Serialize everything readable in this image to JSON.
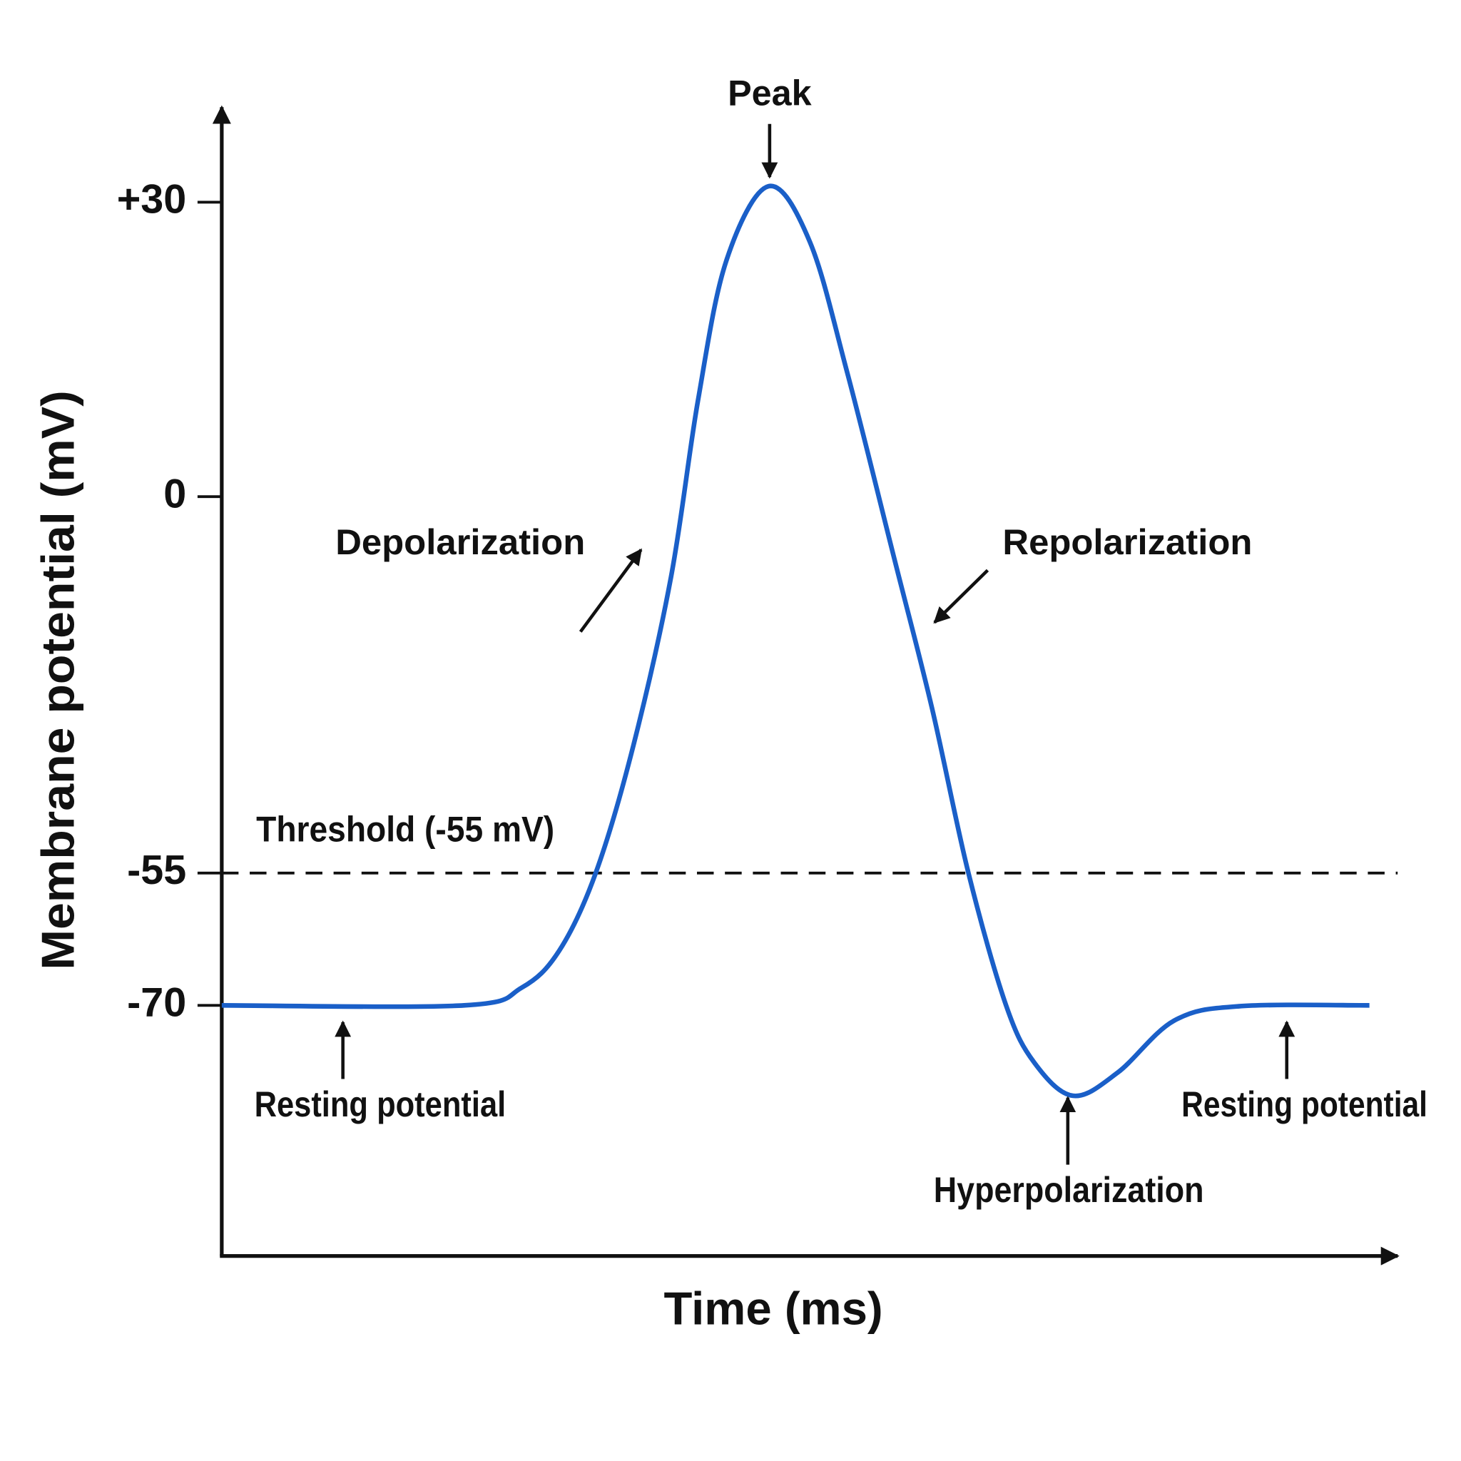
{
  "chart_data": {
    "type": "line",
    "x_label": "Time (ms)",
    "y_label": "Membrane potential (mV)",
    "xlim": [
      0,
      10
    ],
    "ylim": [
      -98,
      40
    ],
    "yticks": [
      {
        "value": 30,
        "label": "+30"
      },
      0,
      -55,
      -70
    ],
    "x": [
      0,
      2.06,
      2.55,
      2.87,
      3.18,
      3.5,
      3.82,
      4.05,
      4.29,
      4.65,
      5.0,
      5.32,
      5.72,
      6.04,
      6.35,
      6.67,
      6.91,
      7.24,
      7.62,
      8.1,
      8.65,
      9.76
    ],
    "series": [
      {
        "color": "#1a5fc8",
        "values": [
          -70,
          -70,
          -68,
          -63.8,
          -55,
          -36.4,
          -11.8,
          9.8,
          24,
          31.6,
          26,
          12.6,
          -9.1,
          -30.9,
          -55,
          -70,
          -76.4,
          -80.1,
          -77.5,
          -71.7,
          -70.1,
          -70
        ]
      }
    ],
    "threshold": {
      "value": -55,
      "label": "Threshold (-55 mV)"
    },
    "annotations": [
      "Peak",
      "Depolarization",
      "Repolarization",
      "Resting potential",
      "Hyperpolarization",
      "Resting potential"
    ]
  }
}
